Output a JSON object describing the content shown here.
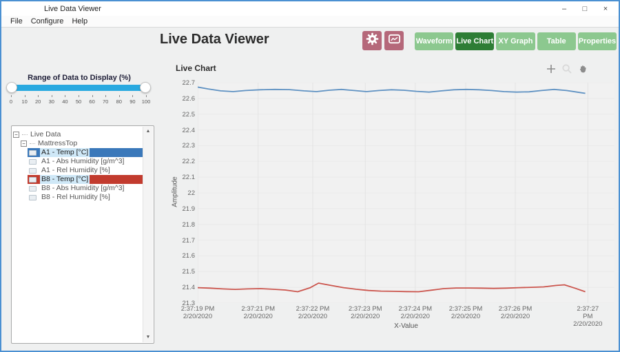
{
  "window": {
    "title": "Live Data Viewer",
    "controls": [
      {
        "name": "minimize",
        "glyph": "–"
      },
      {
        "name": "maximize",
        "glyph": "□"
      },
      {
        "name": "close",
        "glyph": "×"
      }
    ]
  },
  "menu": {
    "items": [
      "File",
      "Configure",
      "Help"
    ]
  },
  "header": {
    "title": "Live Data Viewer",
    "buttons": [
      {
        "name": "settings-button",
        "icon": "gear-icon"
      },
      {
        "name": "chart-config-button",
        "icon": "chart-icon"
      }
    ],
    "tabs": [
      {
        "label": "Waveform",
        "active": false
      },
      {
        "label": "Live Chart",
        "active": true
      },
      {
        "label": "XY Graph",
        "active": false
      },
      {
        "label": "Table",
        "active": false
      },
      {
        "label": "Properties",
        "active": false
      }
    ],
    "colors": {
      "tab": "#8cc88f",
      "tab_active": "#2d7d35",
      "button": "#b5687a"
    }
  },
  "sidebar": {
    "slider": {
      "label": "Range of Data to Display (%)",
      "value_low": 0,
      "value_high": 100,
      "tick_labels": [
        "0",
        "10",
        "20",
        "30",
        "40",
        "50",
        "60",
        "70",
        "80",
        "90",
        "100"
      ],
      "track_color": "#29a9e0"
    },
    "tree": {
      "items": [
        {
          "label": "Live Data",
          "level": 0,
          "type": "branch"
        },
        {
          "label": "MattressTop",
          "level": 1,
          "type": "branch"
        },
        {
          "label": "A1 - Temp [°C]",
          "level": 2,
          "type": "leaf",
          "highlight": "#3a78ba",
          "selected": true
        },
        {
          "label": "A1 - Abs Humidity [g/m^3]",
          "level": 2,
          "type": "leaf"
        },
        {
          "label": "A1 - Rel Humidity [%]",
          "level": 2,
          "type": "leaf"
        },
        {
          "label": "B8 - Temp [°C]",
          "level": 2,
          "type": "leaf",
          "highlight": "#c23b2e",
          "selected": true
        },
        {
          "label": "B8 - Abs Humidity [g/m^3]",
          "level": 2,
          "type": "leaf"
        },
        {
          "label": "B8 - Rel Humidity [%]",
          "level": 2,
          "type": "leaf"
        }
      ]
    }
  },
  "chart": {
    "title": "Live Chart",
    "tools": [
      "add-cursor-icon",
      "zoom-icon",
      "pan-hand-icon"
    ]
  },
  "chart_data": {
    "type": "line",
    "title": "Live Chart",
    "xlabel": "X-Value",
    "ylabel": "Amplitude",
    "ylim": [
      21.3,
      22.7
    ],
    "grid": true,
    "legend": "none",
    "y_ticks": [
      "22.7",
      "22.6",
      "22.5",
      "22.4",
      "22.3",
      "22.2",
      "22.1",
      "22",
      "21.9",
      "21.8",
      "21.7",
      "21.6",
      "21.5",
      "21.4",
      "21.3"
    ],
    "x_ticks": [
      {
        "time": "2:37:19 PM",
        "date": "2/20/2020",
        "pos": 0.0
      },
      {
        "time": "2:37:21 PM",
        "date": "2/20/2020",
        "pos": 0.145
      },
      {
        "time": "2:37:22 PM",
        "date": "2/20/2020",
        "pos": 0.276
      },
      {
        "time": "2:37:23 PM",
        "date": "2/20/2020",
        "pos": 0.402
      },
      {
        "time": "2:37:24 PM",
        "date": "2/20/2020",
        "pos": 0.522
      },
      {
        "time": "2:37:25 PM",
        "date": "2/20/2020",
        "pos": 0.643
      },
      {
        "time": "2:37:26 PM",
        "date": "2/20/2020",
        "pos": 0.762
      },
      {
        "time": "2:37:27 PM",
        "date": "2/20/2020",
        "pos": 0.936
      }
    ],
    "series": [
      {
        "name": "A1 - Temp [°C]",
        "color": "#5e91c2",
        "points": [
          [
            0.0,
            22.672
          ],
          [
            0.025,
            22.66
          ],
          [
            0.055,
            22.648
          ],
          [
            0.085,
            22.643
          ],
          [
            0.115,
            22.65
          ],
          [
            0.15,
            22.655
          ],
          [
            0.185,
            22.657
          ],
          [
            0.22,
            22.656
          ],
          [
            0.255,
            22.648
          ],
          [
            0.285,
            22.643
          ],
          [
            0.315,
            22.652
          ],
          [
            0.345,
            22.657
          ],
          [
            0.375,
            22.65
          ],
          [
            0.405,
            22.643
          ],
          [
            0.435,
            22.65
          ],
          [
            0.465,
            22.655
          ],
          [
            0.495,
            22.652
          ],
          [
            0.525,
            22.645
          ],
          [
            0.555,
            22.64
          ],
          [
            0.585,
            22.648
          ],
          [
            0.615,
            22.655
          ],
          [
            0.645,
            22.657
          ],
          [
            0.675,
            22.655
          ],
          [
            0.705,
            22.65
          ],
          [
            0.735,
            22.643
          ],
          [
            0.765,
            22.64
          ],
          [
            0.795,
            22.642
          ],
          [
            0.825,
            22.65
          ],
          [
            0.855,
            22.657
          ],
          [
            0.885,
            22.65
          ],
          [
            0.91,
            22.64
          ],
          [
            0.93,
            22.632
          ]
        ]
      },
      {
        "name": "B8 - Temp [°C]",
        "color": "#cb544c",
        "points": [
          [
            0.0,
            21.398
          ],
          [
            0.03,
            21.395
          ],
          [
            0.06,
            21.39
          ],
          [
            0.09,
            21.387
          ],
          [
            0.12,
            21.39
          ],
          [
            0.15,
            21.392
          ],
          [
            0.18,
            21.388
          ],
          [
            0.21,
            21.383
          ],
          [
            0.24,
            21.372
          ],
          [
            0.27,
            21.398
          ],
          [
            0.29,
            21.427
          ],
          [
            0.32,
            21.412
          ],
          [
            0.35,
            21.398
          ],
          [
            0.38,
            21.388
          ],
          [
            0.41,
            21.38
          ],
          [
            0.44,
            21.376
          ],
          [
            0.47,
            21.375
          ],
          [
            0.5,
            21.373
          ],
          [
            0.53,
            21.372
          ],
          [
            0.56,
            21.382
          ],
          [
            0.59,
            21.392
          ],
          [
            0.62,
            21.396
          ],
          [
            0.65,
            21.396
          ],
          [
            0.68,
            21.395
          ],
          [
            0.71,
            21.393
          ],
          [
            0.74,
            21.395
          ],
          [
            0.77,
            21.398
          ],
          [
            0.8,
            21.4
          ],
          [
            0.83,
            21.403
          ],
          [
            0.86,
            21.412
          ],
          [
            0.88,
            21.416
          ],
          [
            0.905,
            21.395
          ],
          [
            0.93,
            21.372
          ]
        ]
      }
    ]
  }
}
